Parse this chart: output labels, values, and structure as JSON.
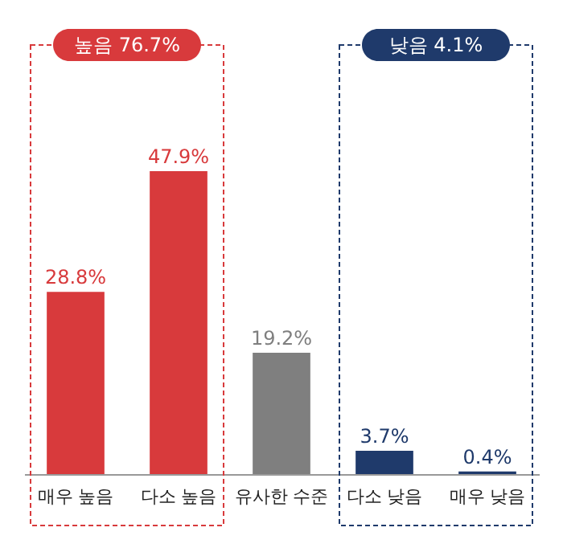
{
  "chart_data": {
    "type": "bar",
    "categories": [
      "매우 높음",
      "다소 높음",
      "유사한 수준",
      "다소 낮음",
      "매우 낮음"
    ],
    "values": [
      28.8,
      47.9,
      19.2,
      3.7,
      0.4
    ],
    "colors": [
      "#d83a3c",
      "#d83a3c",
      "#7f7f7f",
      "#1f3a6b",
      "#1f3a6b"
    ],
    "value_labels": [
      "28.8%",
      "47.9%",
      "19.2%",
      "3.7%",
      "0.4%"
    ],
    "annotations": [
      "높음 76.7%",
      "낮음 4.1%"
    ],
    "grid": false
  }
}
